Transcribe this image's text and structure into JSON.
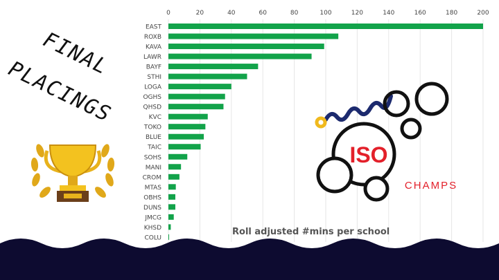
{
  "page": {
    "title_lines": [
      "FINAL",
      "PLACINGS"
    ]
  },
  "logo": {
    "word1": "ISO",
    "word2": "CHAMPS"
  },
  "colors": {
    "bar": "#12a34a",
    "navy": "#0d0b30",
    "logo_red": "#e3202a",
    "gold": "#e8b21c"
  },
  "chart_data": {
    "type": "bar",
    "orientation": "horizontal",
    "title": "",
    "xlabel": "Roll adjusted #mins per school",
    "ylabel": "",
    "xlim": [
      0,
      200
    ],
    "xticks": [
      "0",
      "20",
      "40",
      "60",
      "80",
      "100",
      "120",
      "140",
      "160",
      "180",
      "200"
    ],
    "xtick_values": [
      0,
      20,
      40,
      60,
      80,
      100,
      120,
      140,
      160,
      180,
      200
    ],
    "grid": true,
    "categories": [
      "EAST",
      "ROXB",
      "KAVA",
      "LAWR",
      "BAYF",
      "STHI",
      "LOGA",
      "OGHS",
      "QHSD",
      "KVC",
      "TOKO",
      "BLUE",
      "TAIC",
      "SOHS",
      "MANI",
      "CROM",
      "MTAS",
      "OBHS",
      "DUNS",
      "JMCG",
      "KHSD",
      "COLU"
    ],
    "values": [
      200,
      108,
      99,
      91,
      57,
      50,
      40,
      36,
      35,
      25,
      23.5,
      22.5,
      20.5,
      12,
      8,
      7,
      4.7,
      4.4,
      4.4,
      3.4,
      1.5,
      0.3
    ]
  }
}
